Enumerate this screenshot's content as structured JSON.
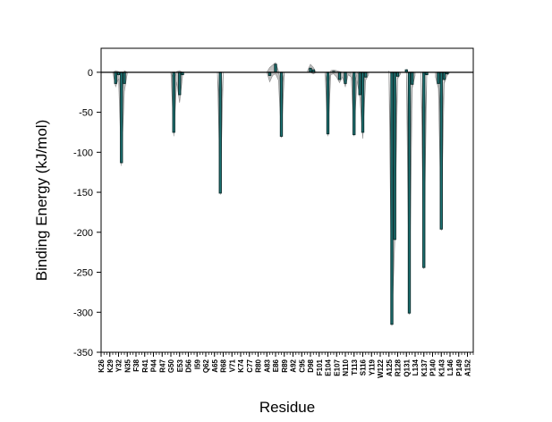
{
  "chart_data": {
    "type": "bar",
    "title": "",
    "xlabel": "Residue",
    "ylabel": "Binding Energy (kJ/mol)",
    "ylim": [
      -350,
      30
    ],
    "yticks": [
      0,
      -50,
      -100,
      -150,
      -200,
      -250,
      -300,
      -350
    ],
    "grid": false,
    "legend": "none",
    "colors": {
      "bar_fill": "#1f7a7a",
      "bar_stroke": "#0b2e2e",
      "band_fill": "#b5b5b5",
      "band_stroke": "#8a8a8a",
      "zero_line": "#000000"
    },
    "residue_start": 26,
    "residue_end": 154,
    "tick_labels": [
      {
        "residue": 26,
        "label": "K26"
      },
      {
        "residue": 29,
        "label": "K29"
      },
      {
        "residue": 32,
        "label": "Y32"
      },
      {
        "residue": 35,
        "label": "N35"
      },
      {
        "residue": 38,
        "label": "F38"
      },
      {
        "residue": 41,
        "label": "R41"
      },
      {
        "residue": 44,
        "label": "P44"
      },
      {
        "residue": 47,
        "label": "R47"
      },
      {
        "residue": 50,
        "label": "G50"
      },
      {
        "residue": 53,
        "label": "E53"
      },
      {
        "residue": 56,
        "label": "D56"
      },
      {
        "residue": 59,
        "label": "I59"
      },
      {
        "residue": 62,
        "label": "Q62"
      },
      {
        "residue": 65,
        "label": "A65"
      },
      {
        "residue": 68,
        "label": "R68"
      },
      {
        "residue": 71,
        "label": "V71"
      },
      {
        "residue": 74,
        "label": "K74"
      },
      {
        "residue": 77,
        "label": "C77"
      },
      {
        "residue": 80,
        "label": "R80"
      },
      {
        "residue": 83,
        "label": "A83"
      },
      {
        "residue": 86,
        "label": "E86"
      },
      {
        "residue": 89,
        "label": "R89"
      },
      {
        "residue": 92,
        "label": "A92"
      },
      {
        "residue": 95,
        "label": "C95"
      },
      {
        "residue": 98,
        "label": "D98"
      },
      {
        "residue": 101,
        "label": "F101"
      },
      {
        "residue": 104,
        "label": "E104"
      },
      {
        "residue": 107,
        "label": "E107"
      },
      {
        "residue": 110,
        "label": "N110"
      },
      {
        "residue": 113,
        "label": "T113"
      },
      {
        "residue": 116,
        "label": "S116"
      },
      {
        "residue": 119,
        "label": "Y119"
      },
      {
        "residue": 122,
        "label": "W122"
      },
      {
        "residue": 125,
        "label": "A125"
      },
      {
        "residue": 128,
        "label": "R128"
      },
      {
        "residue": 131,
        "label": "Q131"
      },
      {
        "residue": 134,
        "label": "L134"
      },
      {
        "residue": 137,
        "label": "K137"
      },
      {
        "residue": 140,
        "label": "P140"
      },
      {
        "residue": 143,
        "label": "K143"
      },
      {
        "residue": 146,
        "label": "L146"
      },
      {
        "residue": 149,
        "label": "P149"
      },
      {
        "residue": 152,
        "label": "A152"
      }
    ],
    "bars": [
      {
        "residue": 31,
        "value": -14
      },
      {
        "residue": 32,
        "value": -3
      },
      {
        "residue": 33,
        "value": -113
      },
      {
        "residue": 34,
        "value": -14
      },
      {
        "residue": 51,
        "value": -75
      },
      {
        "residue": 53,
        "value": -28
      },
      {
        "residue": 54,
        "value": -3
      },
      {
        "residue": 67,
        "value": -151
      },
      {
        "residue": 84,
        "value": -4
      },
      {
        "residue": 86,
        "value": 10
      },
      {
        "residue": 88,
        "value": -80
      },
      {
        "residue": 98,
        "value": 5
      },
      {
        "residue": 99,
        "value": 3
      },
      {
        "residue": 104,
        "value": -77
      },
      {
        "residue": 106,
        "value": 1
      },
      {
        "residue": 108,
        "value": -9
      },
      {
        "residue": 110,
        "value": -14
      },
      {
        "residue": 113,
        "value": -78
      },
      {
        "residue": 115,
        "value": -28
      },
      {
        "residue": 116,
        "value": -75
      },
      {
        "residue": 117,
        "value": -6
      },
      {
        "residue": 126,
        "value": -315
      },
      {
        "residue": 127,
        "value": -209
      },
      {
        "residue": 128,
        "value": -5
      },
      {
        "residue": 131,
        "value": 3
      },
      {
        "residue": 132,
        "value": -301
      },
      {
        "residue": 133,
        "value": -15
      },
      {
        "residue": 137,
        "value": -244
      },
      {
        "residue": 138,
        "value": -3
      },
      {
        "residue": 142,
        "value": -14
      },
      {
        "residue": 143,
        "value": -196
      },
      {
        "residue": 144,
        "value": -9
      },
      {
        "residue": 145,
        "value": -2
      }
    ],
    "error_band": [
      {
        "residue": 30,
        "lower": 0,
        "upper": 0
      },
      {
        "residue": 31,
        "lower": -18,
        "upper": 2
      },
      {
        "residue": 32,
        "lower": -8,
        "upper": 1
      },
      {
        "residue": 33,
        "lower": -117,
        "upper": -40
      },
      {
        "residue": 34,
        "lower": -24,
        "upper": 2
      },
      {
        "residue": 35,
        "lower": -2,
        "upper": 0
      },
      {
        "residue": 50,
        "lower": 0,
        "upper": 0
      },
      {
        "residue": 51,
        "lower": -80,
        "upper": -10
      },
      {
        "residue": 52,
        "lower": -12,
        "upper": 1
      },
      {
        "residue": 53,
        "lower": -38,
        "upper": 2
      },
      {
        "residue": 54,
        "lower": -6,
        "upper": 0
      },
      {
        "residue": 66,
        "lower": 0,
        "upper": 0
      },
      {
        "residue": 67,
        "lower": -153,
        "upper": -60
      },
      {
        "residue": 68,
        "lower": -4,
        "upper": 0
      },
      {
        "residue": 83,
        "lower": 0,
        "upper": 0
      },
      {
        "residue": 84,
        "lower": -12,
        "upper": 6
      },
      {
        "residue": 85,
        "lower": -4,
        "upper": 9
      },
      {
        "residue": 86,
        "lower": -2,
        "upper": 12
      },
      {
        "residue": 87,
        "lower": -10,
        "upper": 2
      },
      {
        "residue": 88,
        "lower": -82,
        "upper": -20
      },
      {
        "residue": 89,
        "lower": -4,
        "upper": 0
      },
      {
        "residue": 97,
        "lower": 0,
        "upper": 2
      },
      {
        "residue": 98,
        "lower": 0,
        "upper": 10
      },
      {
        "residue": 99,
        "lower": -2,
        "upper": 6
      },
      {
        "residue": 100,
        "lower": 0,
        "upper": 0
      },
      {
        "residue": 103,
        "lower": 0,
        "upper": 0
      },
      {
        "residue": 104,
        "lower": -80,
        "upper": -20
      },
      {
        "residue": 105,
        "lower": -3,
        "upper": 2
      },
      {
        "residue": 106,
        "lower": -2,
        "upper": 3
      },
      {
        "residue": 107,
        "lower": -6,
        "upper": 2
      },
      {
        "residue": 108,
        "lower": -13,
        "upper": 1
      },
      {
        "residue": 109,
        "lower": -6,
        "upper": 0
      },
      {
        "residue": 110,
        "lower": -18,
        "upper": 0
      },
      {
        "residue": 111,
        "lower": -3,
        "upper": 0
      },
      {
        "residue": 112,
        "lower": -6,
        "upper": 0
      },
      {
        "residue": 113,
        "lower": -80,
        "upper": -20
      },
      {
        "residue": 114,
        "lower": -10,
        "upper": 0
      },
      {
        "residue": 115,
        "lower": -32,
        "upper": -4
      },
      {
        "residue": 116,
        "lower": -83,
        "upper": -20
      },
      {
        "residue": 117,
        "lower": -10,
        "upper": 0
      },
      {
        "residue": 118,
        "lower": -3,
        "upper": 0
      },
      {
        "residue": 125,
        "lower": -2,
        "upper": 2
      },
      {
        "residue": 126,
        "lower": -317,
        "upper": -150
      },
      {
        "residue": 127,
        "lower": -212,
        "upper": -100
      },
      {
        "residue": 128,
        "lower": -8,
        "upper": 0
      },
      {
        "residue": 129,
        "lower": -2,
        "upper": 0
      },
      {
        "residue": 131,
        "lower": -2,
        "upper": 4
      },
      {
        "residue": 132,
        "lower": -303,
        "upper": -150
      },
      {
        "residue": 133,
        "lower": -20,
        "upper": 0
      },
      {
        "residue": 134,
        "lower": -4,
        "upper": 0
      },
      {
        "residue": 136,
        "lower": 0,
        "upper": 0
      },
      {
        "residue": 137,
        "lower": -246,
        "upper": -120
      },
      {
        "residue": 138,
        "lower": -6,
        "upper": 0
      },
      {
        "residue": 141,
        "lower": -6,
        "upper": 0
      },
      {
        "residue": 142,
        "lower": -20,
        "upper": 0
      },
      {
        "residue": 143,
        "lower": -198,
        "upper": -90
      },
      {
        "residue": 144,
        "lower": -14,
        "upper": 0
      },
      {
        "residue": 145,
        "lower": -4,
        "upper": 0
      },
      {
        "residue": 146,
        "lower": 0,
        "upper": 0
      }
    ]
  }
}
